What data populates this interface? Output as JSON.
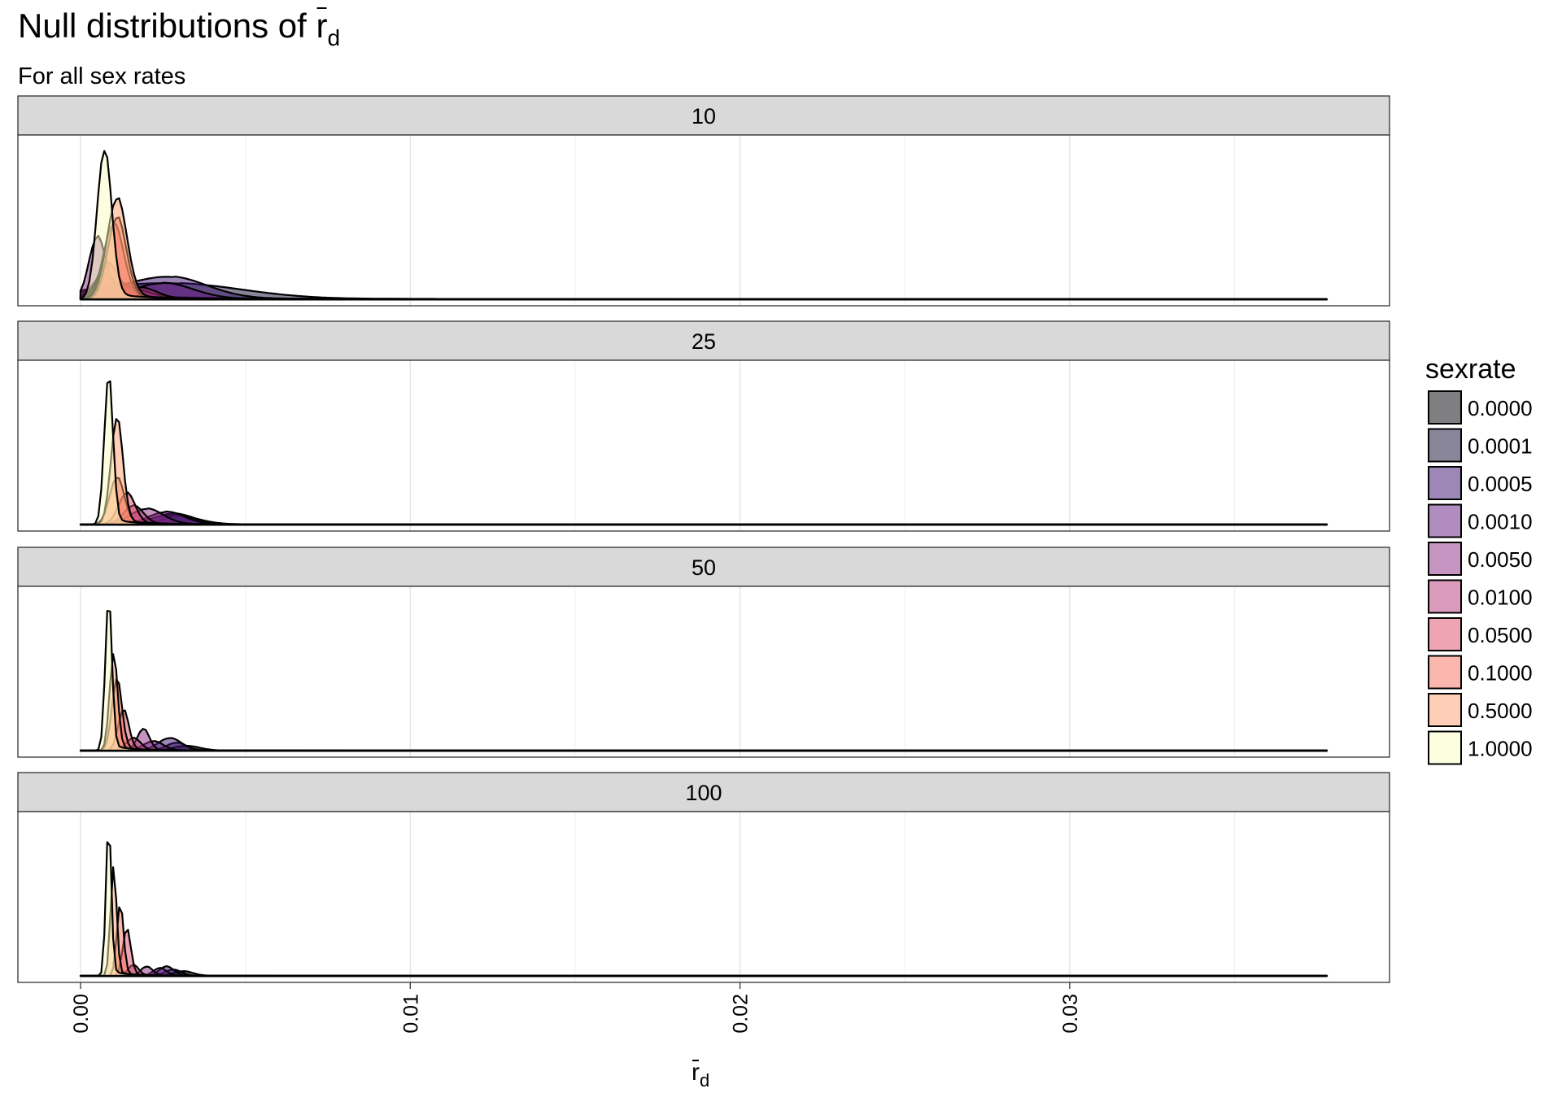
{
  "chart_data": {
    "type": "area",
    "title": {
      "main": "Null distributions of ",
      "symbol": "r",
      "subscript": "d"
    },
    "subtitle": "For all sex rates",
    "xlabel": {
      "symbol": "r",
      "subscript": "d"
    },
    "ylabel": "",
    "x_ticks": [
      0.0,
      0.01,
      0.02,
      0.03
    ],
    "x_tick_labels": [
      "0.00",
      "0.01",
      "0.02",
      "0.03"
    ],
    "xlim": [
      -0.0019,
      0.0397
    ],
    "x_extent": [
      0.0,
      0.0378
    ],
    "y_axis_shown": false,
    "grid": true,
    "legend": {
      "title": "sexrate",
      "placement": "right",
      "items": [
        "0.0000",
        "0.0001",
        "0.0005",
        "0.0010",
        "0.0050",
        "0.0100",
        "0.0500",
        "0.1000",
        "0.5000",
        "1.0000"
      ]
    },
    "colors": [
      "#000004",
      "#1d1147",
      "#51127c",
      "#822681",
      "#b73779",
      "#e75263",
      "#fc8961",
      "#fec488",
      "#fcfdbf"
    ],
    "legend_colors": [
      "#000004",
      "#140e36",
      "#3b0f70",
      "#641a80",
      "#8c2981",
      "#b73779",
      "#de4968",
      "#f7705c",
      "#fe9f6d",
      "#fcfdbf"
    ],
    "facets": [
      {
        "label": "10",
        "ymax": 1.0,
        "series": [
          {
            "name": "0.0000",
            "peaks": [
              [
                0.0005,
                0.02,
                0.0018
              ],
              [
                0.0028,
                0.005,
                0.0035
              ]
            ]
          },
          {
            "name": "0.0001",
            "peaks": [
              [
                0.0006,
                0.03,
                0.0016
              ],
              [
                0.003,
                0.09,
                0.002
              ]
            ]
          },
          {
            "name": "0.0005",
            "peaks": [
              [
                0.0008,
                0.05,
                0.0015
              ],
              [
                0.0028,
                0.12,
                0.0011
              ]
            ]
          },
          {
            "name": "0.0010",
            "peaks": [
              [
                0.0007,
                0.14,
                0.00035
              ],
              [
                0.0025,
                0.1,
                0.0009
              ]
            ]
          },
          {
            "name": "0.0050",
            "peaks": [
              [
                0.0005,
                0.38,
                0.00025
              ],
              [
                0.0015,
                0.06,
                0.0006
              ]
            ]
          },
          {
            "name": "0.0100",
            "peaks": [
              [
                0.0008,
                0.22,
                0.0003
              ],
              [
                0.0018,
                0.07,
                0.0005
              ]
            ]
          },
          {
            "name": "0.0500",
            "peaks": [
              [
                0.001,
                0.48,
                0.0003
              ]
            ]
          },
          {
            "name": "0.1000",
            "peaks": [
              [
                0.0011,
                0.52,
                0.00028
              ]
            ]
          },
          {
            "name": "0.5000",
            "peaks": [
              [
                0.0011,
                0.64,
                0.0003
              ]
            ]
          },
          {
            "name": "1.0000",
            "peaks": [
              [
                0.00072,
                0.95,
                0.00022
              ]
            ]
          }
        ]
      },
      {
        "label": "25",
        "ymax": 1.0,
        "series": [
          {
            "name": "0.0000",
            "peaks": [
              [
                0.0028,
                0.06,
                0.0007
              ]
            ]
          },
          {
            "name": "0.0001",
            "peaks": [
              [
                0.003,
                0.06,
                0.0005
              ]
            ]
          },
          {
            "name": "0.0005",
            "peaks": [
              [
                0.0028,
                0.07,
                0.0006
              ]
            ]
          },
          {
            "name": "0.0010",
            "peaks": [
              [
                0.0026,
                0.08,
                0.00055
              ]
            ]
          },
          {
            "name": "0.0050",
            "peaks": [
              [
                0.002,
                0.1,
                0.0005
              ]
            ]
          },
          {
            "name": "0.0100",
            "peaks": [
              [
                0.0016,
                0.12,
                0.0003
              ]
            ]
          },
          {
            "name": "0.0500",
            "peaks": [
              [
                0.0014,
                0.2,
                0.00025
              ]
            ]
          },
          {
            "name": "0.1000",
            "peaks": [
              [
                0.0011,
                0.3,
                0.00022
              ]
            ]
          },
          {
            "name": "0.5000",
            "peaks": [
              [
                0.0011,
                0.68,
                0.00018
              ]
            ]
          },
          {
            "name": "1.0000",
            "peaks": [
              [
                0.00085,
                0.95,
                0.00013
              ]
            ]
          }
        ]
      },
      {
        "label": "50",
        "ymax": 1.0,
        "series": [
          {
            "name": "0.0000",
            "peaks": [
              [
                0.0032,
                0.03,
                0.0004
              ]
            ]
          },
          {
            "name": "0.0001",
            "peaks": [
              [
                0.0029,
                0.05,
                0.0003
              ]
            ]
          },
          {
            "name": "0.0005",
            "peaks": [
              [
                0.0027,
                0.08,
                0.00035
              ]
            ]
          },
          {
            "name": "0.0010",
            "peaks": [
              [
                0.0022,
                0.06,
                0.0003
              ]
            ]
          },
          {
            "name": "0.0050",
            "peaks": [
              [
                0.0019,
                0.14,
                0.00018
              ]
            ]
          },
          {
            "name": "0.0100",
            "peaks": [
              [
                0.0016,
                0.08,
                0.00022
              ]
            ]
          },
          {
            "name": "0.0500",
            "peaks": [
              [
                0.0013,
                0.26,
                0.00016
              ]
            ]
          },
          {
            "name": "0.1000",
            "peaks": [
              [
                0.0011,
                0.46,
                0.00015
              ]
            ]
          },
          {
            "name": "0.5000",
            "peaks": [
              [
                0.001,
                0.62,
                0.00012
              ]
            ]
          },
          {
            "name": "1.0000",
            "peaks": [
              [
                0.00085,
                0.97,
                0.0001
              ]
            ]
          }
        ]
      },
      {
        "label": "100",
        "ymax": 1.0,
        "series": [
          {
            "name": "0.0000",
            "peaks": [
              [
                0.0031,
                0.03,
                0.0003
              ]
            ]
          },
          {
            "name": "0.0001",
            "peaks": [
              [
                0.0028,
                0.04,
                0.00025
              ]
            ]
          },
          {
            "name": "0.0005",
            "peaks": [
              [
                0.0026,
                0.06,
                0.00022
              ]
            ]
          },
          {
            "name": "0.0010",
            "peaks": [
              [
                0.0024,
                0.05,
                0.0002
              ]
            ]
          },
          {
            "name": "0.0050",
            "peaks": [
              [
                0.002,
                0.06,
                0.00018
              ]
            ]
          },
          {
            "name": "0.0100",
            "peaks": [
              [
                0.0016,
                0.07,
                0.00016
              ]
            ]
          },
          {
            "name": "0.0500",
            "peaks": [
              [
                0.0014,
                0.3,
                0.00012
              ]
            ]
          },
          {
            "name": "0.1000",
            "peaks": [
              [
                0.0012,
                0.46,
                0.0001
              ]
            ]
          },
          {
            "name": "0.5000",
            "peaks": [
              [
                0.001,
                0.7,
                9e-05
              ]
            ]
          },
          {
            "name": "1.0000",
            "peaks": [
              [
                0.00085,
                0.97,
                8e-05
              ]
            ]
          }
        ]
      }
    ]
  }
}
